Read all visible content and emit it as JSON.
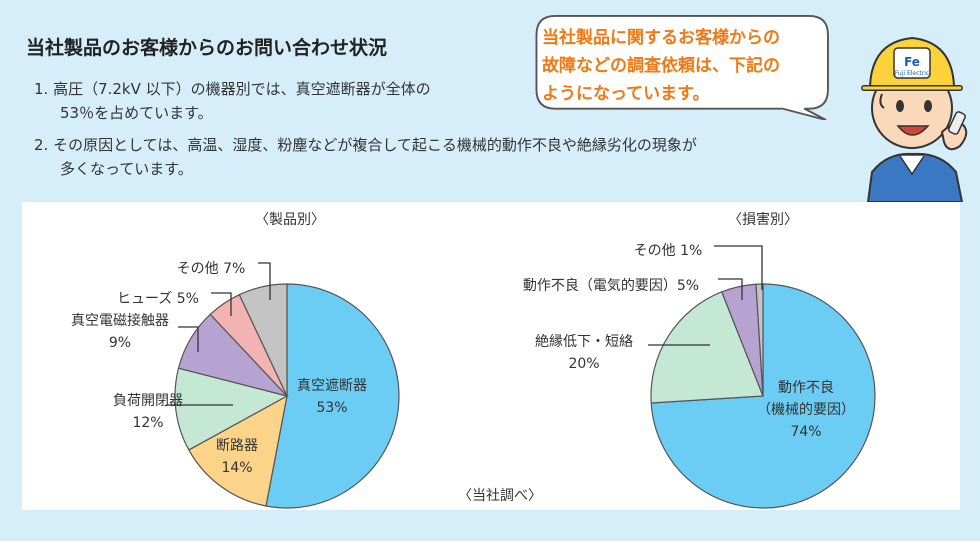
{
  "header": {
    "title": "当社製品のお客様からのお問い合わせ状況",
    "note1_line1": "1. 高圧（7.2kV 以下）の機器別では、真空遮断器が全体の",
    "note1_line2": "53％を占めています。",
    "note2_line1": "2. その原因としては、高温、湿度、粉塵などが複合して起こる機械的動作不良や絶縁劣化の現象が",
    "note2_line2": "多くなっています。"
  },
  "speech": {
    "line1": "当社製品に関するお客様からの",
    "line2": "故障などの調査依頼は、下記の",
    "line3": "ようになっています。"
  },
  "mascot": {
    "helmet_logo": "Fe",
    "helmet_text": "Fuji Electric"
  },
  "source_note": "〈当社調べ〉",
  "colors": {
    "blue": "#6ccdf4",
    "orange": "#fcd489",
    "green": "#c5e8d5",
    "purple": "#b6a3d2",
    "pink": "#f3b3b3",
    "gray": "#c4c4c4",
    "accent": "#ee7a16",
    "background": "#d6eef9"
  },
  "chart_data": [
    {
      "type": "pie",
      "title": "〈製品別〉",
      "categories": [
        "真空遮断器",
        "断路器",
        "負荷開閉器",
        "真空電磁接触器",
        "ヒューズ",
        "その他"
      ],
      "values": [
        53,
        14,
        12,
        9,
        5,
        7
      ],
      "labels": [
        {
          "lines": [
            "真空遮断器",
            "53%"
          ]
        },
        {
          "lines": [
            "断路器",
            "14%"
          ]
        },
        {
          "lines": [
            "負荷開閉器",
            "12%"
          ]
        },
        {
          "lines": [
            "真空電磁接触器",
            "9%"
          ]
        },
        {
          "lines": [
            "ヒューズ 5%"
          ]
        },
        {
          "lines": [
            "その他 7%"
          ]
        }
      ],
      "colors": [
        "#6ccdf4",
        "#fcd489",
        "#c5e8d5",
        "#b6a3d2",
        "#f3b3b3",
        "#c4c4c4"
      ]
    },
    {
      "type": "pie",
      "title": "〈損害別〉",
      "categories": [
        "動作不良（機械的要因）",
        "絶縁低下・短絡",
        "動作不良（電気的要因）",
        "その他"
      ],
      "values": [
        74,
        20,
        5,
        1
      ],
      "labels": [
        {
          "lines": [
            "動作不良",
            "（機械的要因）",
            "74%"
          ]
        },
        {
          "lines": [
            "絶縁低下・短絡",
            "20%"
          ]
        },
        {
          "lines": [
            "動作不良（電気的要因）5%"
          ]
        },
        {
          "lines": [
            "その他 1%"
          ]
        }
      ],
      "colors": [
        "#6ccdf4",
        "#c5e8d5",
        "#b6a3d2",
        "#c4c4c4"
      ]
    }
  ]
}
